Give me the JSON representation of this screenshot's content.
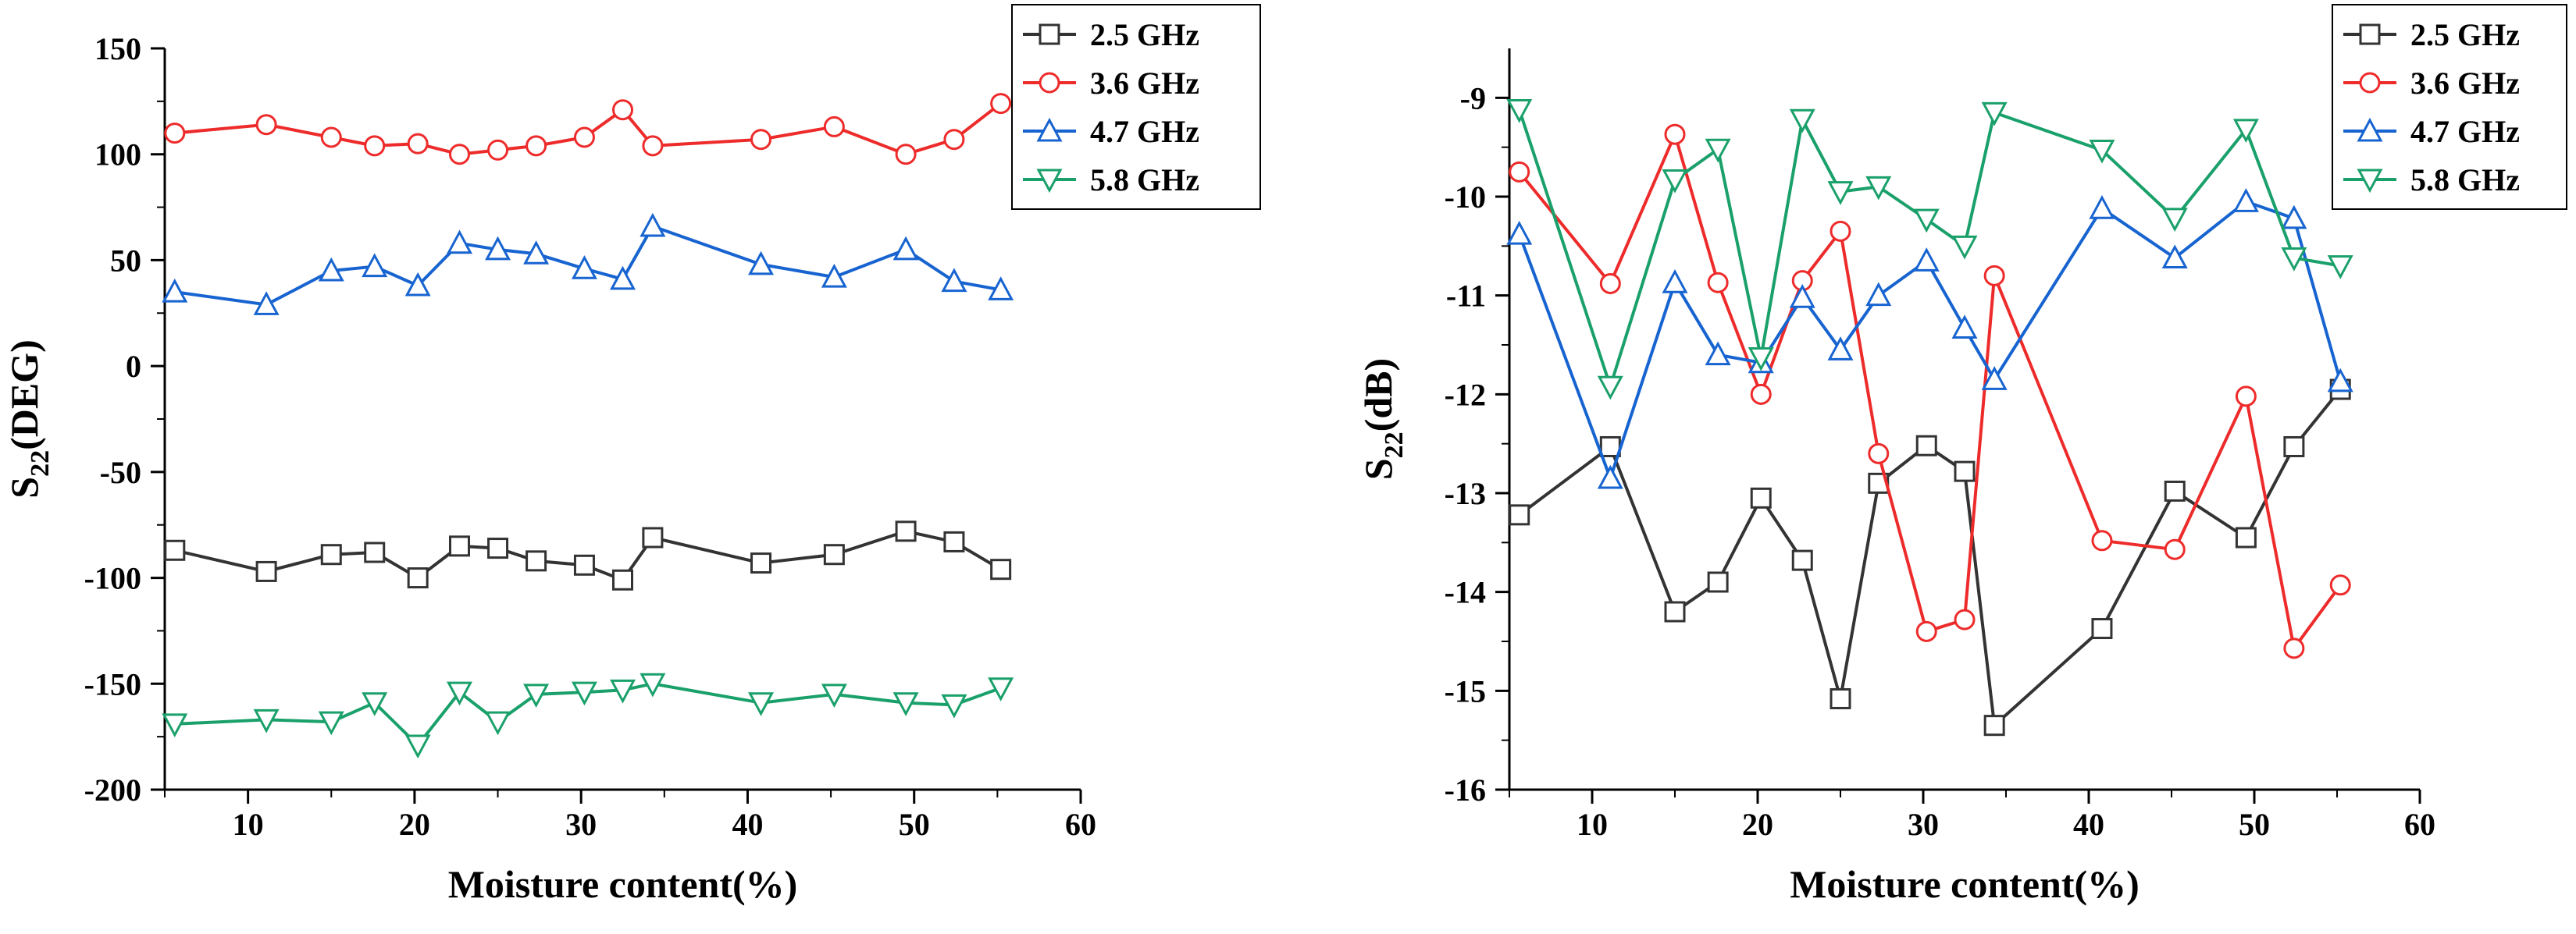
{
  "chart_data": [
    {
      "type": "line",
      "title": "",
      "xlabel": "Moisture content(%)",
      "ylabel": {
        "main": "S",
        "sub": "22",
        "unit": "(DEG)"
      },
      "xlim": [
        5,
        60
      ],
      "ylim": [
        -200,
        150
      ],
      "xticks": [
        "10",
        "20",
        "30",
        "40",
        "50",
        "60"
      ],
      "yticks": [
        "150",
        "100",
        "50",
        "0",
        "-50",
        "-100",
        "-150",
        "-200"
      ],
      "legend_position": "top-right",
      "series": [
        {
          "name": "2.5 GHz",
          "color": "#333333",
          "marker": "square",
          "x": [
            5.6,
            11.1,
            15.0,
            17.6,
            20.2,
            22.7,
            25.0,
            27.3,
            30.2,
            32.5,
            34.3,
            40.8,
            45.2,
            49.5,
            52.4,
            55.2
          ],
          "y": [
            -87,
            -97,
            -89,
            -88,
            -100,
            -85,
            -86,
            -92,
            -94,
            -101,
            -81,
            -93,
            -89,
            -78,
            -83,
            -96
          ]
        },
        {
          "name": "3.6 GHz",
          "color": "#ee2b2b",
          "marker": "circle",
          "x": [
            5.6,
            11.1,
            15.0,
            17.6,
            20.2,
            22.7,
            25.0,
            27.3,
            30.2,
            32.5,
            34.3,
            40.8,
            45.2,
            49.5,
            52.4,
            55.2
          ],
          "y": [
            110,
            114,
            108,
            104,
            105,
            100,
            102,
            104,
            108,
            121,
            104,
            107,
            113,
            100,
            107,
            124
          ]
        },
        {
          "name": "4.7 GHz",
          "color": "#1764d1",
          "marker": "triangle-up",
          "x": [
            5.6,
            11.1,
            15.0,
            17.6,
            20.2,
            22.7,
            25.0,
            27.3,
            30.2,
            32.5,
            34.3,
            40.8,
            45.2,
            49.5,
            52.4,
            55.2
          ],
          "y": [
            35,
            29,
            45,
            47,
            38,
            58,
            55,
            53,
            46,
            41,
            66,
            48,
            42,
            55,
            40,
            36
          ]
        },
        {
          "name": "5.8 GHz",
          "color": "#1aa06a",
          "marker": "triangle-down",
          "x": [
            5.6,
            11.1,
            15.0,
            17.6,
            20.2,
            22.7,
            25.0,
            27.3,
            30.2,
            32.5,
            34.3,
            40.8,
            45.2,
            49.5,
            52.4,
            55.2
          ],
          "y": [
            -169,
            -167,
            -168,
            -159,
            -179,
            -154,
            -168,
            -155,
            -154,
            -153,
            -150,
            -159,
            -155,
            -159,
            -160,
            -152
          ]
        }
      ]
    },
    {
      "type": "line",
      "title": "",
      "xlabel": "Moisture content(%)",
      "ylabel": {
        "main": "S",
        "sub": "22",
        "unit": "(dB)"
      },
      "xlim": [
        5,
        60
      ],
      "ylim": [
        -16,
        -8.5
      ],
      "xticks": [
        "10",
        "20",
        "30",
        "40",
        "50",
        "60"
      ],
      "yticks": [
        "-9",
        "-10",
        "-11",
        "-12",
        "-13",
        "-14",
        "-15",
        "-16"
      ],
      "legend_position": "top-right",
      "series": [
        {
          "name": "2.5 GHz",
          "color": "#333333",
          "marker": "square",
          "x": [
            5.6,
            11.1,
            15.0,
            17.6,
            20.2,
            22.7,
            25.0,
            27.3,
            30.2,
            32.5,
            34.3,
            40.8,
            45.2,
            49.5,
            52.4,
            55.2
          ],
          "y": [
            -13.22,
            -12.53,
            -14.2,
            -13.9,
            -13.05,
            -13.68,
            -15.08,
            -12.9,
            -12.52,
            -12.78,
            -15.35,
            -14.37,
            -12.98,
            -13.45,
            -12.53,
            -11.95
          ]
        },
        {
          "name": "3.6 GHz",
          "color": "#ee2b2b",
          "marker": "circle",
          "x": [
            5.6,
            11.1,
            15.0,
            17.6,
            20.2,
            22.7,
            25.0,
            27.3,
            30.2,
            32.5,
            34.3,
            40.8,
            45.2,
            49.5,
            52.4,
            55.2
          ],
          "y": [
            -9.75,
            -10.88,
            -9.37,
            -10.87,
            -12.0,
            -10.85,
            -10.35,
            -12.6,
            -14.4,
            -14.28,
            -10.8,
            -13.48,
            -13.57,
            -12.02,
            -14.57,
            -13.93
          ]
        },
        {
          "name": "4.7 GHz",
          "color": "#1764d1",
          "marker": "triangle-up",
          "x": [
            5.6,
            11.1,
            15.0,
            17.6,
            20.2,
            22.7,
            25.0,
            27.3,
            30.2,
            32.5,
            34.3,
            40.8,
            45.2,
            49.5,
            52.4,
            55.2
          ],
          "y": [
            -10.38,
            -12.85,
            -10.87,
            -11.6,
            -11.68,
            -11.02,
            -11.55,
            -11.0,
            -10.65,
            -11.33,
            -11.85,
            -10.12,
            -10.62,
            -10.05,
            -10.22,
            -11.87
          ]
        },
        {
          "name": "5.8 GHz",
          "color": "#1aa06a",
          "marker": "triangle-down",
          "x": [
            5.6,
            11.1,
            15.0,
            17.6,
            20.2,
            22.7,
            25.0,
            27.3,
            30.2,
            32.5,
            34.3,
            40.8,
            45.2,
            49.5,
            52.4,
            55.2
          ],
          "y": [
            -9.12,
            -11.92,
            -9.83,
            -9.52,
            -11.63,
            -9.22,
            -9.95,
            -9.9,
            -10.23,
            -10.5,
            -9.15,
            -9.53,
            -10.22,
            -9.32,
            -10.62,
            -10.7
          ]
        }
      ]
    }
  ]
}
